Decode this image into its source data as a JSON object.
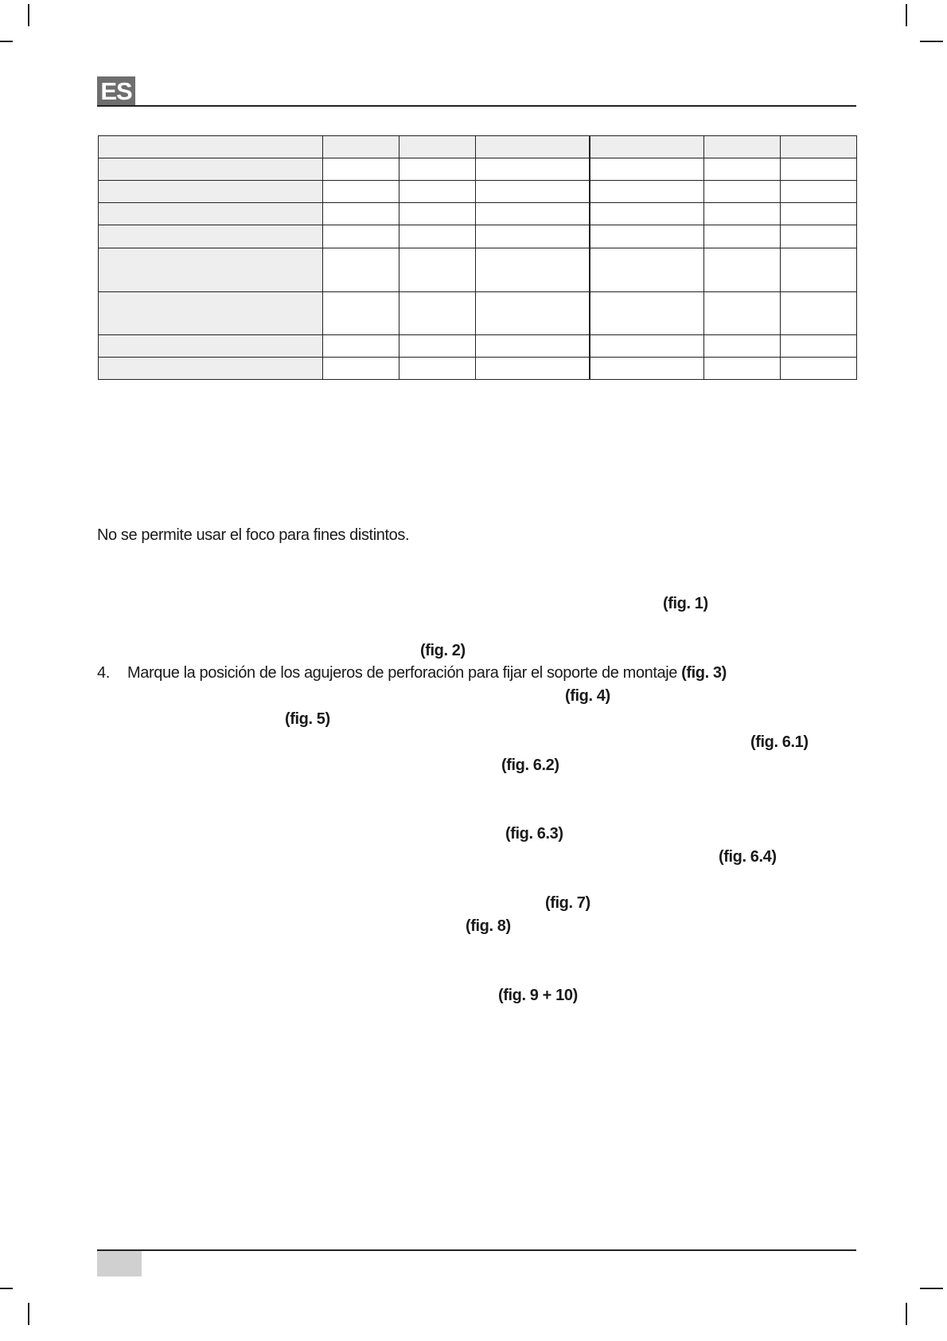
{
  "header": {
    "language_badge": "ES"
  },
  "table": {
    "rows": 9,
    "columns": 7,
    "row_heights_note_free": true
  },
  "body": {
    "intended_use_sentence": "No se permite usar el foco para fines distintos.",
    "step4": {
      "number": "4.",
      "text": "Marque la posición de los agujeros de perforación para fijar el soporte de montaje ",
      "ref": "(fig. 3)"
    },
    "figure_refs": [
      "(fig. 1)",
      "(fig. 2)",
      "(fig. 4)",
      "(fig. 5)",
      "(fig. 6.1)",
      "(fig. 6.2)",
      "(fig. 6.3)",
      "(fig. 6.4)",
      "(fig. 7)",
      "(fig. 8)",
      "(fig. 9 + 10)"
    ]
  },
  "colors": {
    "badge": "#6e6e6e",
    "table_label_fill": "#eeeeee",
    "footer_box": "#d0d0d0"
  }
}
